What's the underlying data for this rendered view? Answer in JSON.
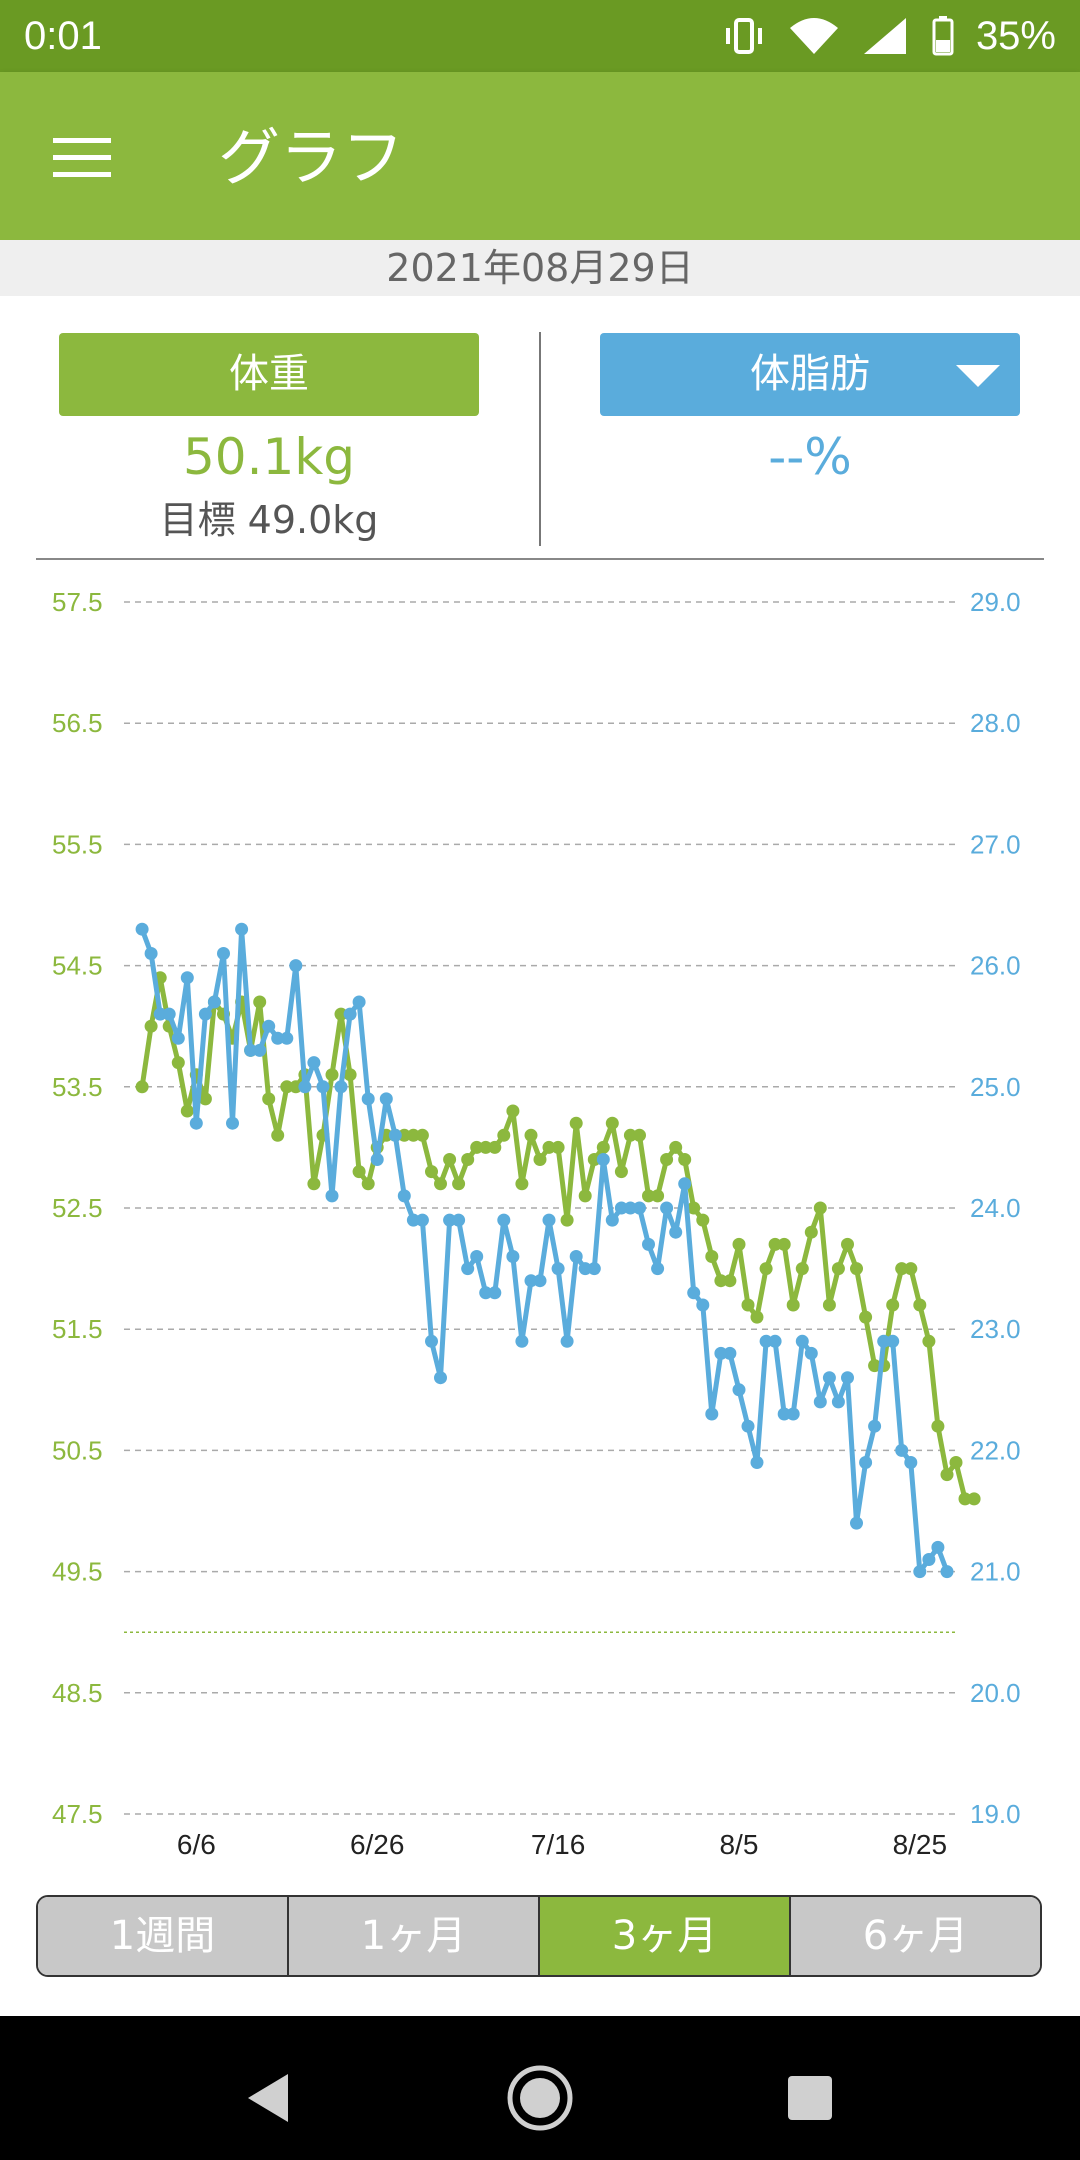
{
  "status_bar": {
    "time": "0:01",
    "battery": "35%",
    "icons": [
      "vibrate-icon",
      "wifi-icon",
      "signal-icon",
      "battery-icon"
    ]
  },
  "app_bar": {
    "title": "グラフ",
    "menu_icon": "hamburger-menu-icon"
  },
  "date": "2021年08月29日",
  "weight_panel": {
    "button_label": "体重",
    "value": "50.1kg",
    "goal": "目標 49.0kg"
  },
  "fat_panel": {
    "button_label": "体脂肪",
    "value": "--%",
    "dropdown_icon": "triangle-down-icon"
  },
  "colors": {
    "green": "#8cb83e",
    "blue": "#5aacdc",
    "status_green": "#6a9a23"
  },
  "chart_data": {
    "type": "line",
    "x_tick_labels": [
      "6/6",
      "6/26",
      "7/16",
      "8/5",
      "8/25"
    ],
    "x_tick_days": [
      6,
      26,
      46,
      66,
      86
    ],
    "y_left_ticks": [
      "57.5",
      "56.5",
      "55.5",
      "54.5",
      "53.5",
      "52.5",
      "51.5",
      "50.5",
      "49.5",
      "48.5",
      "47.5"
    ],
    "y_right_ticks": [
      "29.0",
      "28.0",
      "27.0",
      "26.0",
      "25.0",
      "24.0",
      "23.0",
      "22.0",
      "21.0",
      "20.0",
      "19.0"
    ],
    "y_left_range": [
      47.5,
      57.5
    ],
    "y_right_range": [
      19.0,
      29.0
    ],
    "x_day_range": [
      -2,
      90
    ],
    "goal_weight": 49.0,
    "grid": true,
    "series": [
      {
        "axis": "left",
        "color": "#8cb83e",
        "values": [
          53.5,
          54.0,
          54.4,
          54.0,
          53.7,
          53.3,
          53.6,
          53.4,
          54.2,
          54.1,
          53.9,
          54.2,
          53.8,
          54.2,
          53.4,
          53.1,
          53.5,
          53.5,
          53.6,
          52.7,
          53.1,
          53.6,
          54.1,
          53.6,
          52.8,
          52.7,
          53.0,
          53.1,
          53.1,
          53.1,
          53.1,
          53.1,
          52.8,
          52.7,
          52.9,
          52.7,
          52.9,
          53.0,
          53.0,
          53.0,
          53.1,
          53.3,
          52.7,
          53.1,
          52.9,
          53.0,
          53.0,
          52.4,
          53.2,
          52.6,
          52.9,
          53.0,
          53.2,
          52.8,
          53.1,
          53.1,
          52.6,
          52.6,
          52.9,
          53.0,
          52.9,
          52.5,
          52.4,
          52.1,
          51.9,
          51.9,
          52.2,
          51.7,
          51.6,
          52.0,
          52.2,
          52.2,
          51.7,
          52.0,
          52.3,
          52.5,
          51.7,
          52.0,
          52.2,
          52.0,
          51.6,
          51.2,
          51.2,
          51.7,
          52.0,
          52.0,
          51.7,
          51.4,
          50.7,
          50.3,
          50.4,
          50.1,
          50.1
        ]
      },
      {
        "axis": "right",
        "color": "#5aacdc",
        "values": [
          26.3,
          26.1,
          25.6,
          25.6,
          25.4,
          25.9,
          24.7,
          25.6,
          25.7,
          26.1,
          24.7,
          26.3,
          25.3,
          25.3,
          25.5,
          25.4,
          25.4,
          26.0,
          25.0,
          25.2,
          25.0,
          24.1,
          25.0,
          25.6,
          25.7,
          24.9,
          24.4,
          24.9,
          24.6,
          24.1,
          23.9,
          23.9,
          22.9,
          22.6,
          23.9,
          23.9,
          23.5,
          23.6,
          23.3,
          23.3,
          23.9,
          23.6,
          22.9,
          23.4,
          23.4,
          23.9,
          23.5,
          22.9,
          23.6,
          23.5,
          23.5,
          24.4,
          23.9,
          24.0,
          24.0,
          24.0,
          23.7,
          23.5,
          24.0,
          23.8,
          24.2,
          23.3,
          23.2,
          22.3,
          22.8,
          22.8,
          22.5,
          22.2,
          21.9,
          22.9,
          22.9,
          22.3,
          22.3,
          22.9,
          22.8,
          22.4,
          22.6,
          22.4,
          22.6,
          21.4,
          21.9,
          22.2,
          22.9,
          22.9,
          22.0,
          21.9,
          21.0,
          21.1,
          21.2,
          21.0
        ]
      }
    ]
  },
  "period_tabs": [
    {
      "label": "1週間",
      "active": false
    },
    {
      "label": "1ヶ月",
      "active": false
    },
    {
      "label": "3ヶ月",
      "active": true
    },
    {
      "label": "6ヶ月",
      "active": false
    }
  ],
  "nav_bar": {
    "back_icon": "back-triangle-icon",
    "home_icon": "home-circle-icon",
    "recents_icon": "recents-square-icon"
  }
}
